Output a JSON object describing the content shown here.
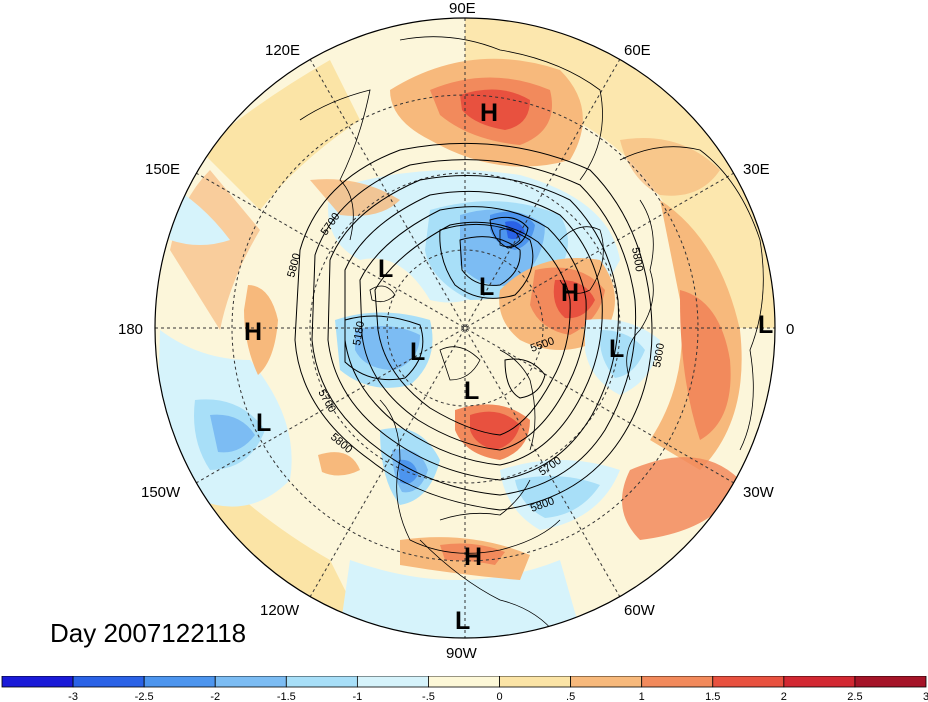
{
  "title": "Day 2007122118",
  "longitude_labels": {
    "lon_90E": "90E",
    "lon_60E": "60E",
    "lon_30E": "30E",
    "lon_0": "0",
    "lon_30W": "30W",
    "lon_60W": "60W",
    "lon_90W": "90W",
    "lon_120W": "120W",
    "lon_150W": "150W",
    "lon_180": "180",
    "lon_150E": "150E",
    "lon_120E": "120E"
  },
  "pressure_centers": [
    {
      "label": "H",
      "type": "high"
    },
    {
      "label": "L",
      "type": "low"
    },
    {
      "label": "L",
      "type": "low"
    },
    {
      "label": "H",
      "type": "high"
    },
    {
      "label": "H",
      "type": "high"
    },
    {
      "label": "L",
      "type": "low"
    },
    {
      "label": "L",
      "type": "low"
    },
    {
      "label": "L",
      "type": "low"
    },
    {
      "label": "L",
      "type": "low"
    },
    {
      "label": "L",
      "type": "low"
    },
    {
      "label": "H",
      "type": "high"
    },
    {
      "label": "L",
      "type": "low"
    }
  ],
  "contour_labels": [
    "5700",
    "5800",
    "5800",
    "5180",
    "5700",
    "5800",
    "5500",
    "5800",
    "5700",
    "5800"
  ],
  "colorbar": {
    "ticks": [
      "-3",
      "-2.5",
      "-2",
      "-1.5",
      "-1",
      "-.5",
      "0",
      ".5",
      "1",
      "1.5",
      "2",
      "2.5",
      "3"
    ],
    "colors": [
      "#1a1ad8",
      "#2a62e6",
      "#4d95ee",
      "#7cbcf3",
      "#a8dff8",
      "#d6f3fb",
      "#fdf8d8",
      "#fbe4a6",
      "#f7b97c",
      "#f28a5c",
      "#e8513f",
      "#d22832",
      "#a51428"
    ]
  }
}
